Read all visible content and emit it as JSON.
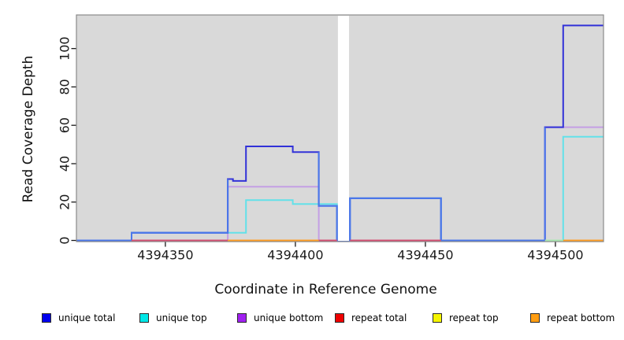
{
  "chart_data": {
    "type": "line",
    "step": true,
    "title": "",
    "xlabel": "Coordinate in Reference Genome",
    "ylabel": "Read Coverage Depth",
    "x_ticks": [
      4394350,
      4394400,
      4394450,
      4394500
    ],
    "y_ticks": [
      0,
      20,
      40,
      60,
      80,
      100
    ],
    "xlim": [
      4394315.8,
      4394518.5
    ],
    "ylim": [
      0,
      117.5
    ],
    "grid": false,
    "legend_position": "bottom",
    "panel_bg": "#d9d9d9",
    "panel_border": "#8a8a8a",
    "axis_color": "#1a1a1a",
    "no_data_gap": [
      4394416,
      4394421
    ],
    "series": [
      {
        "name": "repeat top",
        "swatch": "#f5f500",
        "line": "#f5f500",
        "steps": [
          [
            4394315.8,
            0
          ]
        ]
      },
      {
        "name": "repeat bottom",
        "swatch": "#ff9d12",
        "line": "#ff9d24",
        "steps": [
          [
            4394315.8,
            0
          ]
        ]
      },
      {
        "name": "repeat total",
        "swatch": "#ee0000",
        "line": "#d44f72",
        "steps": [
          [
            4394315.8,
            0
          ]
        ]
      },
      {
        "name": "unique bottom",
        "swatch": "#a020f0",
        "line": "#c49fe4",
        "steps": [
          [
            4394315.8,
            0
          ],
          [
            4394374,
            28
          ],
          [
            4394409,
            0
          ],
          [
            4394496,
            59
          ]
        ]
      },
      {
        "name": "unique top",
        "swatch": "#00e7e7",
        "line": "#63e1e9",
        "steps": [
          [
            4394315.8,
            0
          ],
          [
            4394337,
            4
          ],
          [
            4394381,
            21
          ],
          [
            4394399,
            19
          ],
          [
            4394416,
            0
          ],
          [
            4394421,
            22
          ],
          [
            4394456,
            0
          ],
          [
            4394503,
            54
          ]
        ]
      },
      {
        "name": "unique total",
        "swatch": "#0000ee",
        "line": "#3232d8",
        "line_bright": "#4b78ea",
        "steps": [
          [
            4394315.8,
            0
          ],
          [
            4394337,
            4
          ],
          [
            4394374,
            32
          ],
          [
            4394376,
            31
          ],
          [
            4394381,
            49
          ],
          [
            4394399,
            46
          ],
          [
            4394409,
            18
          ],
          [
            4394416,
            0
          ],
          [
            4394421,
            22
          ],
          [
            4394456,
            0
          ],
          [
            4394496,
            59
          ],
          [
            4394503,
            112
          ]
        ],
        "bright_segments": [
          [
            4394315.8,
            4394374
          ],
          [
            4394409,
            4394496
          ]
        ]
      }
    ],
    "baseline_overlays": [
      {
        "x0": 4394337,
        "x1": 4394374,
        "color": "#d44f72"
      },
      {
        "x0": 4394374,
        "x1": 4394409,
        "color": "#ff9d24"
      },
      {
        "x0": 4394409,
        "x1": 4394416,
        "color": "#d44f72"
      },
      {
        "x0": 4394421,
        "x1": 4394456,
        "color": "#d44f72"
      },
      {
        "x0": 4394496,
        "x1": 4394503,
        "color": "#a8e6b0"
      },
      {
        "x0": 4394503,
        "x1": 4394518.5,
        "color": "#ff9d24"
      }
    ],
    "legend": [
      "unique total",
      "unique top",
      "unique bottom",
      "repeat total",
      "repeat top",
      "repeat bottom"
    ]
  }
}
